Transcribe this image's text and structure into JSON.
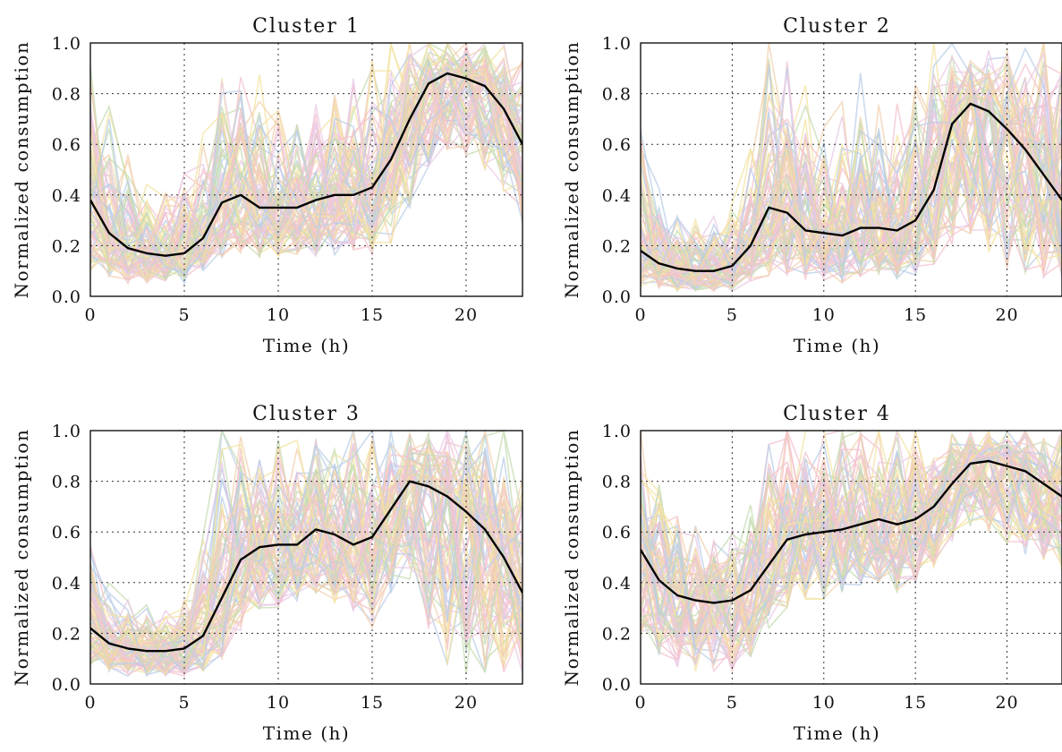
{
  "figure": {
    "ylabel": "Normalized consumption",
    "xlabel": "Time (h)"
  },
  "chart_data": [
    {
      "type": "line",
      "title": "Cluster 1",
      "xlabel": "Time (h)",
      "ylabel": "Normalized consumption",
      "xlim": [
        0,
        23
      ],
      "ylim": [
        0,
        1
      ],
      "xticks": [
        0,
        5,
        10,
        15,
        20
      ],
      "yticks": [
        "0.0",
        "0.2",
        "0.4",
        "0.6",
        "0.8",
        "1.0"
      ],
      "grid": true,
      "x": [
        0,
        1,
        2,
        3,
        4,
        5,
        6,
        7,
        8,
        9,
        10,
        11,
        12,
        13,
        14,
        15,
        16,
        17,
        18,
        19,
        20,
        21,
        22,
        23
      ],
      "series": [
        {
          "role": "centroid",
          "color": "#000000",
          "values": [
            0.38,
            0.25,
            0.19,
            0.17,
            0.16,
            0.17,
            0.23,
            0.37,
            0.4,
            0.35,
            0.35,
            0.35,
            0.38,
            0.4,
            0.4,
            0.43,
            0.54,
            0.7,
            0.84,
            0.88,
            0.86,
            0.83,
            0.74,
            0.6
          ]
        },
        {
          "role": "members",
          "colors": [
            "#f4c2cc",
            "#f3e3a1",
            "#c6dcb2",
            "#b9cde8",
            "#e9c9e6",
            "#f2d0ad"
          ],
          "min_curve": [
            0.1,
            0.07,
            0.05,
            0.05,
            0.05,
            0.05,
            0.08,
            0.15,
            0.17,
            0.15,
            0.15,
            0.15,
            0.15,
            0.16,
            0.16,
            0.16,
            0.2,
            0.35,
            0.48,
            0.55,
            0.55,
            0.5,
            0.4,
            0.28
          ],
          "max_curve": [
            0.95,
            0.75,
            0.55,
            0.45,
            0.42,
            0.45,
            0.62,
            0.95,
            1.0,
            0.8,
            0.72,
            0.75,
            0.8,
            0.9,
            0.95,
            1.0,
            1.0,
            1.0,
            1.0,
            1.0,
            1.0,
            1.0,
            1.0,
            1.0
          ]
        }
      ]
    },
    {
      "type": "line",
      "title": "Cluster 2",
      "xlabel": "Time (h)",
      "ylabel": "Normalized consumption",
      "xlim": [
        0,
        23
      ],
      "ylim": [
        0,
        1
      ],
      "xticks": [
        0,
        5,
        10,
        15,
        20
      ],
      "yticks": [
        "0.0",
        "0.2",
        "0.4",
        "0.6",
        "0.8",
        "1.0"
      ],
      "grid": true,
      "x": [
        0,
        1,
        2,
        3,
        4,
        5,
        6,
        7,
        8,
        9,
        10,
        11,
        12,
        13,
        14,
        15,
        16,
        17,
        18,
        19,
        20,
        21,
        22,
        23
      ],
      "series": [
        {
          "role": "centroid",
          "color": "#000000",
          "values": [
            0.18,
            0.13,
            0.11,
            0.1,
            0.1,
            0.12,
            0.2,
            0.35,
            0.33,
            0.26,
            0.25,
            0.24,
            0.27,
            0.27,
            0.26,
            0.3,
            0.42,
            0.68,
            0.76,
            0.73,
            0.66,
            0.58,
            0.48,
            0.38
          ]
        },
        {
          "role": "members",
          "colors": [
            "#f4c2cc",
            "#f3e3a1",
            "#c6dcb2",
            "#b9cde8",
            "#e9c9e6",
            "#f2d0ad"
          ],
          "min_curve": [
            0.04,
            0.03,
            0.02,
            0.02,
            0.02,
            0.02,
            0.05,
            0.08,
            0.08,
            0.06,
            0.06,
            0.05,
            0.06,
            0.07,
            0.06,
            0.08,
            0.12,
            0.2,
            0.2,
            0.15,
            0.1,
            0.08,
            0.05,
            0.03
          ],
          "max_curve": [
            0.7,
            0.4,
            0.32,
            0.3,
            0.3,
            0.35,
            0.55,
            1.0,
            1.0,
            0.8,
            0.65,
            0.75,
            0.8,
            0.75,
            0.75,
            0.9,
            1.0,
            1.0,
            1.0,
            1.0,
            1.0,
            1.0,
            1.0,
            0.95
          ]
        }
      ]
    },
    {
      "type": "line",
      "title": "Cluster 3",
      "xlabel": "Time (h)",
      "ylabel": "Normalized consumption",
      "xlim": [
        0,
        23
      ],
      "ylim": [
        0,
        1
      ],
      "xticks": [
        0,
        5,
        10,
        15,
        20
      ],
      "yticks": [
        "0.0",
        "0.2",
        "0.4",
        "0.6",
        "0.8",
        "1.0"
      ],
      "grid": true,
      "x": [
        0,
        1,
        2,
        3,
        4,
        5,
        6,
        7,
        8,
        9,
        10,
        11,
        12,
        13,
        14,
        15,
        16,
        17,
        18,
        19,
        20,
        21,
        22,
        23
      ],
      "series": [
        {
          "role": "centroid",
          "color": "#000000",
          "values": [
            0.22,
            0.16,
            0.14,
            0.13,
            0.13,
            0.14,
            0.19,
            0.34,
            0.49,
            0.54,
            0.55,
            0.55,
            0.61,
            0.59,
            0.55,
            0.58,
            0.69,
            0.8,
            0.78,
            0.74,
            0.68,
            0.61,
            0.5,
            0.36
          ]
        },
        {
          "role": "members",
          "colors": [
            "#f4c2cc",
            "#f3e3a1",
            "#c6dcb2",
            "#b9cde8",
            "#e9c9e6",
            "#f2d0ad"
          ],
          "min_curve": [
            0.05,
            0.04,
            0.03,
            0.03,
            0.03,
            0.03,
            0.05,
            0.1,
            0.2,
            0.28,
            0.3,
            0.32,
            0.35,
            0.32,
            0.28,
            0.2,
            0.35,
            0.4,
            0.2,
            0.05,
            0.04,
            0.04,
            0.04,
            0.04
          ],
          "max_curve": [
            0.6,
            0.4,
            0.32,
            0.3,
            0.3,
            0.32,
            0.55,
            1.0,
            1.0,
            1.0,
            1.0,
            1.0,
            1.0,
            1.0,
            1.0,
            1.0,
            1.0,
            1.0,
            1.0,
            1.0,
            1.0,
            1.0,
            1.0,
            0.85
          ]
        }
      ]
    },
    {
      "type": "line",
      "title": "Cluster 4",
      "xlabel": "Time (h)",
      "ylabel": "Normalized consumption",
      "xlim": [
        0,
        23
      ],
      "ylim": [
        0,
        1
      ],
      "xticks": [
        0,
        5,
        10,
        15,
        20
      ],
      "yticks": [
        "0.0",
        "0.2",
        "0.4",
        "0.6",
        "0.8",
        "1.0"
      ],
      "grid": true,
      "x": [
        0,
        1,
        2,
        3,
        4,
        5,
        6,
        7,
        8,
        9,
        10,
        11,
        12,
        13,
        14,
        15,
        16,
        17,
        18,
        19,
        20,
        21,
        22,
        23
      ],
      "series": [
        {
          "role": "centroid",
          "color": "#000000",
          "values": [
            0.53,
            0.41,
            0.35,
            0.33,
            0.32,
            0.33,
            0.37,
            0.47,
            0.57,
            0.59,
            0.6,
            0.61,
            0.63,
            0.65,
            0.63,
            0.65,
            0.7,
            0.79,
            0.87,
            0.88,
            0.86,
            0.84,
            0.79,
            0.74
          ]
        },
        {
          "role": "members",
          "colors": [
            "#f4c2cc",
            "#f3e3a1",
            "#c6dcb2",
            "#b9cde8",
            "#e9c9e6",
            "#f2d0ad"
          ],
          "min_curve": [
            0.18,
            0.1,
            0.06,
            0.05,
            0.04,
            0.05,
            0.1,
            0.22,
            0.3,
            0.32,
            0.33,
            0.35,
            0.38,
            0.4,
            0.36,
            0.38,
            0.45,
            0.55,
            0.6,
            0.6,
            0.55,
            0.5,
            0.48,
            0.45
          ],
          "max_curve": [
            1.0,
            0.85,
            0.7,
            0.62,
            0.58,
            0.62,
            0.8,
            0.95,
            1.0,
            1.0,
            1.0,
            1.0,
            1.0,
            1.0,
            1.0,
            1.0,
            1.0,
            1.0,
            1.0,
            1.0,
            1.0,
            1.0,
            1.0,
            1.0
          ]
        }
      ]
    }
  ]
}
